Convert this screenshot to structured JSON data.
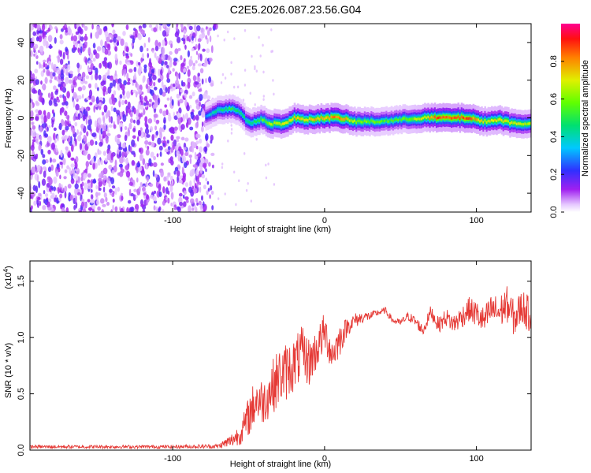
{
  "title": "C2E5.2026.087.23.56.G04",
  "chart_data": [
    {
      "type": "heatmap",
      "xlabel": "Height of straight line (km)",
      "ylabel": "Frequency (Hz)",
      "xlim": [
        -194,
        136
      ],
      "ylim": [
        -50,
        50
      ],
      "xticks": [
        -100,
        0,
        100
      ],
      "xtick_labels": [
        "-100",
        "0",
        "100"
      ],
      "yticks": [
        -40,
        -20,
        0,
        20,
        40
      ],
      "ytick_labels": [
        "-40",
        "-20",
        "0",
        "20",
        "40"
      ],
      "colorbar": {
        "label": "Normalized spectral amplitude",
        "range": [
          0,
          1
        ],
        "ticks": [
          0,
          0.2,
          0.4,
          0.6,
          0.8
        ],
        "tick_labels": [
          "0.0",
          "0.2",
          "0.4",
          "0.6",
          "0.8"
        ]
      },
      "noise_region_x": [
        -194,
        -71
      ],
      "ridge": [
        {
          "x": -78,
          "y": 1,
          "amp": 0.35
        },
        {
          "x": -70,
          "y": 4,
          "amp": 0.5
        },
        {
          "x": -62,
          "y": 5,
          "amp": 0.55
        },
        {
          "x": -55,
          "y": 3,
          "amp": 0.5
        },
        {
          "x": -50,
          "y": -3,
          "amp": 0.5
        },
        {
          "x": -42,
          "y": -1,
          "amp": 0.6
        },
        {
          "x": -35,
          "y": -3,
          "amp": 0.7
        },
        {
          "x": -25,
          "y": -3,
          "amp": 0.75
        },
        {
          "x": -20,
          "y": 0,
          "amp": 0.8
        },
        {
          "x": -10,
          "y": -1,
          "amp": 0.8
        },
        {
          "x": 0,
          "y": 0,
          "amp": 0.85
        },
        {
          "x": 10,
          "y": 0,
          "amp": 0.9
        },
        {
          "x": 20,
          "y": -2,
          "amp": 0.7
        },
        {
          "x": 35,
          "y": -2,
          "amp": 0.6
        },
        {
          "x": 50,
          "y": -1,
          "amp": 0.6
        },
        {
          "x": 65,
          "y": 0,
          "amp": 0.75
        },
        {
          "x": 75,
          "y": 0,
          "amp": 0.95
        },
        {
          "x": 85,
          "y": 0,
          "amp": 0.95
        },
        {
          "x": 95,
          "y": 0,
          "amp": 0.95
        },
        {
          "x": 105,
          "y": -2,
          "amp": 0.75
        },
        {
          "x": 115,
          "y": -1,
          "amp": 0.8
        },
        {
          "x": 125,
          "y": -3,
          "amp": 0.75
        },
        {
          "x": 136,
          "y": -3,
          "amp": 0.7
        }
      ]
    },
    {
      "type": "line",
      "xlabel": "Height of straight line (km)",
      "ylabel": "SNR (10 * v/v)",
      "y_multiplier": "(x10",
      "y_multiplier_exp": "4",
      "y_multiplier_close": ")",
      "xlim": [
        -194,
        136
      ],
      "ylim": [
        0,
        16800
      ],
      "xticks": [
        -100,
        0,
        100
      ],
      "xtick_labels": [
        "-100",
        "0",
        "100"
      ],
      "yticks": [
        0,
        5000,
        10000,
        15000
      ],
      "ytick_labels": [
        "0.0",
        "0.5",
        "1.0",
        "1.5"
      ],
      "line_color": "#e53935",
      "series": [
        {
          "x": [
            -194,
            -150,
            -100,
            -70,
            -62,
            -55,
            -50,
            -45,
            -40,
            -35,
            -30,
            -25,
            -20,
            -15,
            -10,
            -5,
            0,
            5,
            10,
            15,
            20,
            25,
            30,
            35,
            40,
            45,
            50,
            55,
            60,
            65,
            70,
            75,
            80,
            85,
            90,
            95,
            100,
            105,
            110,
            115,
            120,
            125,
            130,
            136
          ],
          "y": [
            300,
            300,
            300,
            350,
            800,
            1500,
            3000,
            4500,
            4300,
            5500,
            6500,
            7000,
            7600,
            8600,
            7800,
            9000,
            10500,
            8500,
            9800,
            11000,
            11500,
            11800,
            11900,
            12200,
            12400,
            11500,
            11300,
            11900,
            11400,
            10600,
            12300,
            11100,
            11800,
            11200,
            11800,
            12500,
            12100,
            11400,
            12500,
            12200,
            13000,
            11600,
            12800,
            11800
          ],
          "noise": [
            150,
            150,
            150,
            200,
            600,
            1000,
            1800,
            2200,
            2000,
            2400,
            2600,
            2600,
            2400,
            2400,
            2200,
            1800,
            1800,
            1600,
            1500,
            800,
            700,
            500,
            400,
            300,
            300,
            300,
            300,
            400,
            500,
            500,
            600,
            700,
            800,
            900,
            1000,
            1100,
            1200,
            1300,
            1400,
            1500,
            1600,
            1600,
            1600,
            1600
          ]
        }
      ]
    }
  ]
}
